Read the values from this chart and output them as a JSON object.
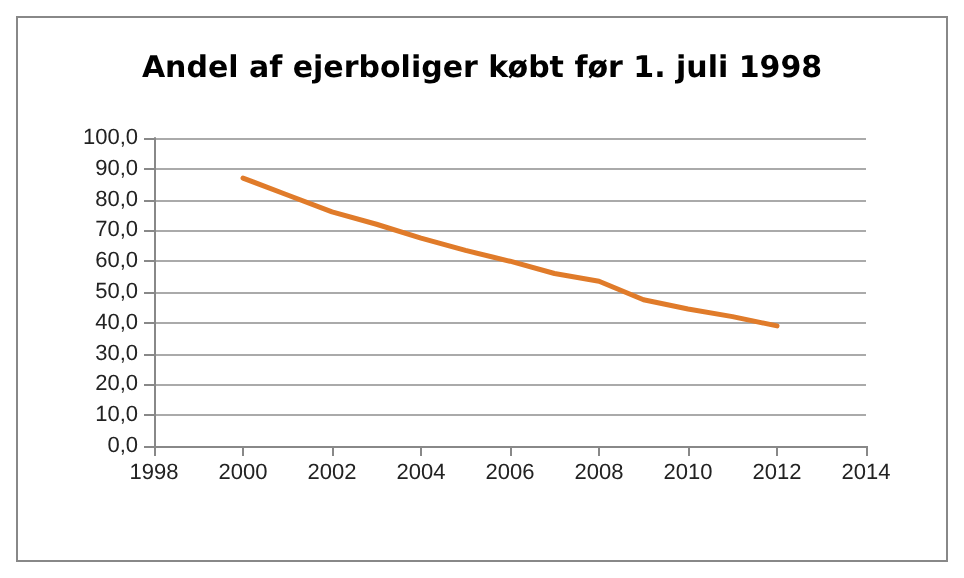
{
  "chart_data": {
    "type": "line",
    "title": "Andel af ejerboliger købt før 1. juli 1998",
    "x": [
      2000,
      2001,
      2002,
      2003,
      2004,
      2005,
      2006,
      2007,
      2008,
      2009,
      2010,
      2011,
      2012
    ],
    "series": [
      {
        "color": "#e07b2a",
        "values": [
          87,
          81.5,
          76,
          72,
          67.5,
          63.5,
          60,
          56,
          53.5,
          47.5,
          44.5,
          42,
          39
        ]
      }
    ],
    "xlim": [
      1998,
      2014
    ],
    "xticks": [
      1998,
      2000,
      2002,
      2004,
      2006,
      2008,
      2010,
      2012,
      2014
    ],
    "ylim": [
      0,
      100
    ],
    "yticks": [
      {
        "value": 0,
        "label": "0,0"
      },
      {
        "value": 10,
        "label": "10,0"
      },
      {
        "value": 20,
        "label": "20,0"
      },
      {
        "value": 30,
        "label": "30,0"
      },
      {
        "value": 40,
        "label": "40,0"
      },
      {
        "value": 50,
        "label": "50,0"
      },
      {
        "value": 60,
        "label": "60,0"
      },
      {
        "value": 70,
        "label": "70,0"
      },
      {
        "value": 80,
        "label": "80,0"
      },
      {
        "value": 90,
        "label": "90,0"
      },
      {
        "value": 100,
        "label": "100,0"
      }
    ],
    "grid": "y",
    "marker": "none",
    "line_style": "solid"
  }
}
